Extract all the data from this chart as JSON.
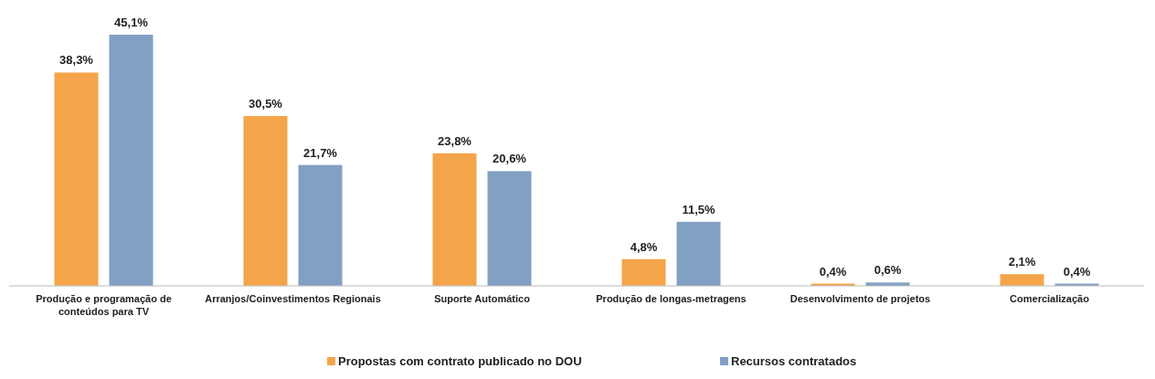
{
  "chart_data": {
    "type": "bar",
    "categories": [
      "Produção e programação de conteúdos para TV",
      "Arranjos/Coinvestimentos Regionais",
      "Suporte Automático",
      "Produção de longas-metragens",
      "Desenvolvimento de projetos",
      "Comercialização"
    ],
    "series": [
      {
        "name": "Propostas com contrato publicado no DOU",
        "color": "#f4a54a",
        "values": [
          38.3,
          30.5,
          23.8,
          4.8,
          0.4,
          2.1
        ],
        "value_labels": [
          "38,3%",
          "30,5%",
          "23,8%",
          "4,8%",
          "0,4%",
          "2,1%"
        ]
      },
      {
        "name": "Recursos contratados",
        "color": "#829fc4",
        "values": [
          45.1,
          21.7,
          20.6,
          11.5,
          0.6,
          0.4
        ],
        "value_labels": [
          "45,1%",
          "21,7%",
          "20,6%",
          "11,5%",
          "0,6%",
          "0,4%"
        ]
      }
    ],
    "legend": "bottom"
  }
}
